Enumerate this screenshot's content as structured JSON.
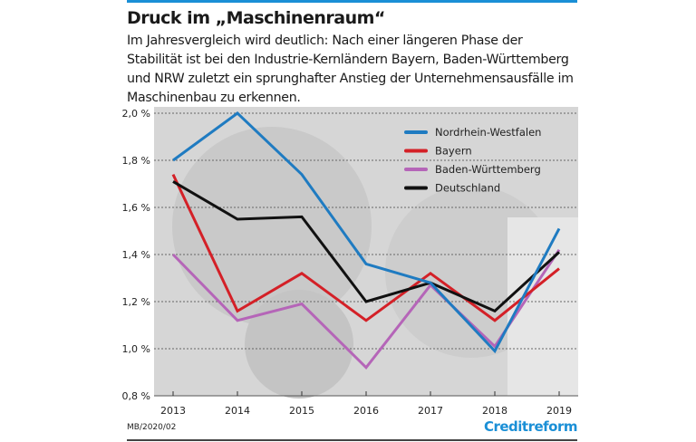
{
  "header": {
    "title": "Druck im „Maschinenraum“",
    "subtitle": "Im Jahresvergleich wird deutlich: Nach einer längeren Phase der Stabilität ist bei den Industrie-Kernländern Bayern, Baden-Württemberg und NRW zuletzt ein sprunghafter Anstieg der Unternehmensausfälle im Maschinenbau zu erkennen."
  },
  "footer": {
    "code": "MB/2020/02",
    "logo": "Creditreform"
  },
  "colors": {
    "accent": "#1a8fd6"
  },
  "chart_data": {
    "type": "line",
    "x": [
      "2013",
      "2014",
      "2015",
      "2016",
      "2017",
      "2018",
      "2019"
    ],
    "ylim": [
      0.8,
      2.0
    ],
    "yticks": [
      0.8,
      1.0,
      1.2,
      1.4,
      1.6,
      1.8,
      2.0
    ],
    "ytick_labels": [
      "0,8 %",
      "1,0 %",
      "1,2 %",
      "1,4 %",
      "1,6 %",
      "1,8 %",
      "2,0 %"
    ],
    "grid": "horizontal dotted",
    "legend": "top-right",
    "series": [
      {
        "name": "Nordrhein-Westfalen",
        "color": "#1f7bc1",
        "values": [
          1.8,
          2.0,
          1.74,
          1.36,
          1.28,
          0.99,
          1.51
        ]
      },
      {
        "name": "Bayern",
        "color": "#d42027",
        "values": [
          1.74,
          1.16,
          1.32,
          1.12,
          1.32,
          1.12,
          1.34
        ]
      },
      {
        "name": "Baden-Württemberg",
        "color": "#b565b8",
        "values": [
          1.4,
          1.12,
          1.19,
          0.92,
          1.27,
          1.01,
          1.42
        ]
      },
      {
        "name": "Deutschland",
        "color": "#111111",
        "values": [
          1.71,
          1.55,
          1.56,
          1.2,
          1.28,
          1.16,
          1.41
        ]
      }
    ]
  }
}
